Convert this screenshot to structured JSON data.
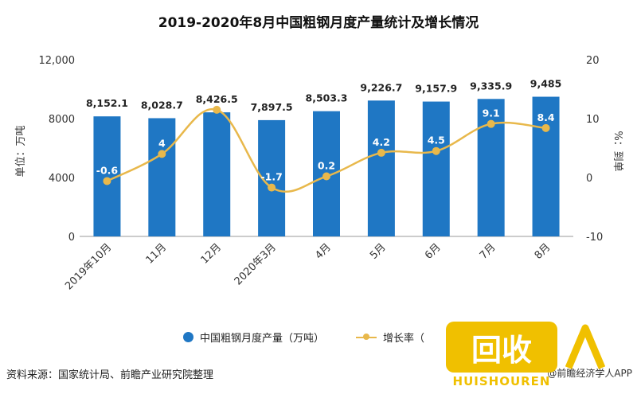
{
  "title": "2019-2020年8月中国粗钢月度产量统计及增长情况",
  "source": "资料来源：国家统计局、前瞻产业研究院整理",
  "credit": "@前瞻经济学人APP",
  "watermark": {
    "main": "回收",
    "sub": "HUISHOUREN"
  },
  "colors": {
    "bar": "#1f77c4",
    "line": "#e8b84b",
    "axis": "#999999"
  },
  "chart_data": {
    "type": "bar",
    "categories": [
      "2019年10月",
      "11月",
      "12月",
      "2020年3月",
      "4月",
      "5月",
      "6月",
      "7月",
      "8月"
    ],
    "series": [
      {
        "name": "中国粗钢月度产量（万吨）",
        "type": "bar",
        "axis": "left",
        "values": [
          8152.1,
          8028.7,
          8426.5,
          7897.5,
          8503.3,
          9226.7,
          9157.9,
          9335.9,
          9485
        ],
        "labels": [
          "8,152.1",
          "8,028.7",
          "8,426.5",
          "7,897.5",
          "8,503.3",
          "9,226.7",
          "9,157.9",
          "9,335.9",
          "9,485"
        ]
      },
      {
        "name": "增长率（%）",
        "type": "line",
        "axis": "right",
        "values": [
          -0.6,
          4,
          11.5,
          -1.7,
          0.2,
          4.2,
          4.5,
          9.1,
          8.4
        ],
        "labels": [
          "-0.6",
          "4",
          "",
          "-1.7",
          "0.2",
          "4.2",
          "4.5",
          "9.1",
          "8.4"
        ]
      }
    ],
    "ylabel_left": "单位：万吨",
    "ylabel_right": "%：到单",
    "ylim_left": [
      0,
      12000
    ],
    "yticks_left": [
      "0",
      "4000",
      "8000",
      "12,000"
    ],
    "ylim_right": [
      -10,
      20
    ],
    "yticks_right": [
      "-10",
      "0",
      "10",
      "20"
    ],
    "legend": [
      {
        "label": "中国粗钢月度产量（万吨）",
        "kind": "bar"
      },
      {
        "label": "增长率（",
        "kind": "line"
      }
    ],
    "legend_position": "bottom"
  }
}
